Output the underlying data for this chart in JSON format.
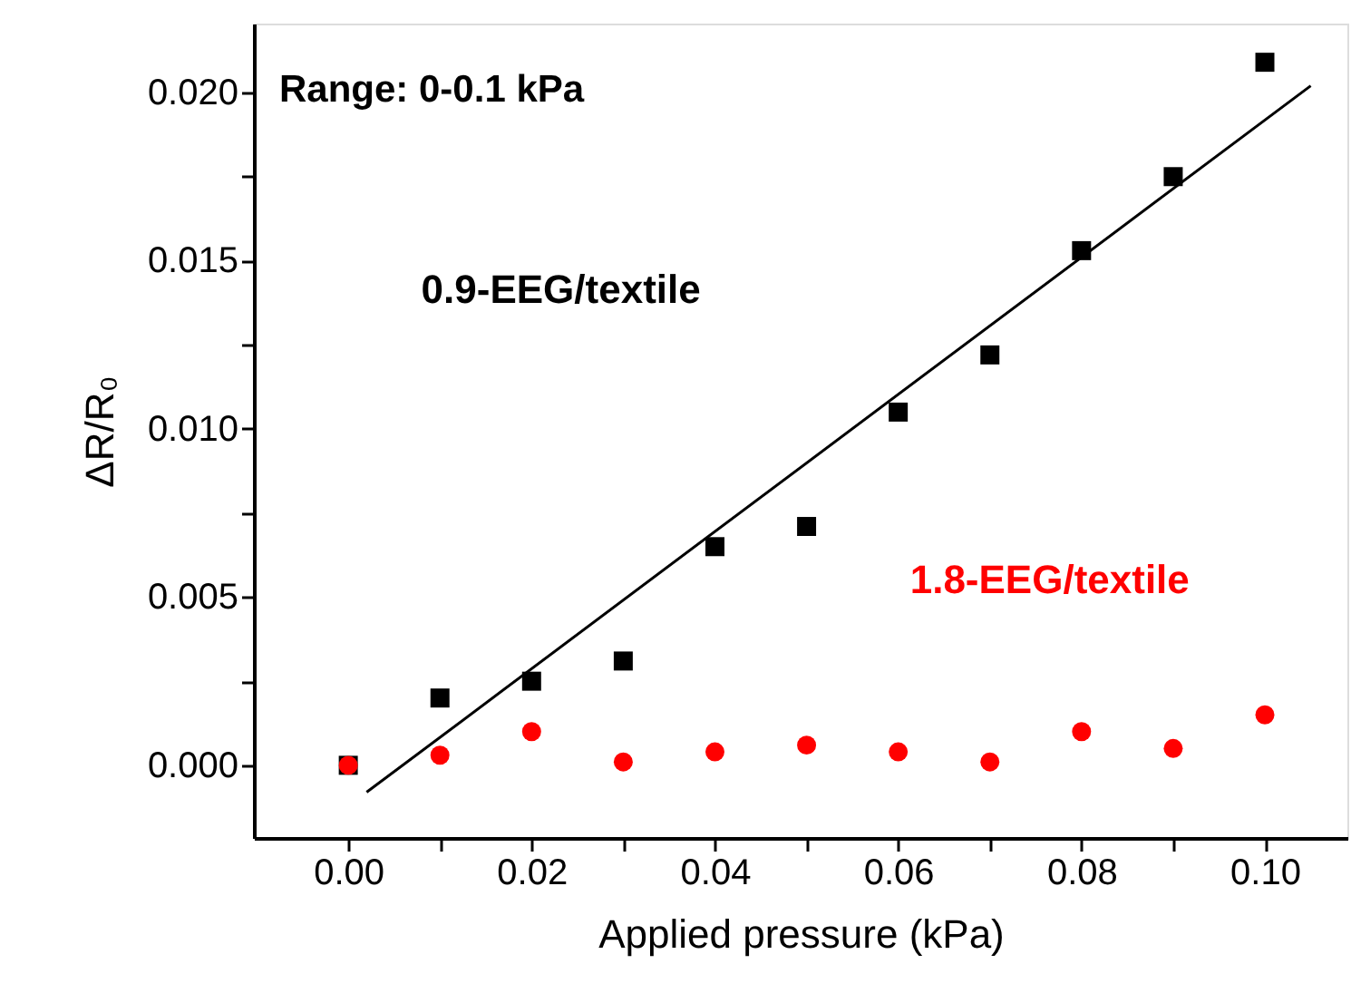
{
  "chart_data": {
    "type": "scatter",
    "xlabel": "Applied pressure (kPa)",
    "ylabel": "ΔR/R₀",
    "annotations": [
      "Range: 0-0.1 kPa"
    ],
    "x": [
      0,
      0.01,
      0.02,
      0.03,
      0.04,
      0.05,
      0.06,
      0.07,
      0.08,
      0.09,
      0.1
    ],
    "series": [
      {
        "name": "0.9-EEG/textile",
        "color": "#000000",
        "marker": "square",
        "values": [
          0,
          0.002,
          0.0025,
          0.0031,
          0.0065,
          0.0071,
          0.0105,
          0.0122,
          0.0153,
          0.0175,
          0.0209
        ]
      },
      {
        "name": "1.8-EEG/textile",
        "color": "#ff0000",
        "marker": "circle",
        "values": [
          0,
          0.0003,
          0.001,
          0.0001,
          0.0004,
          0.0006,
          0.0004,
          0.0001,
          0.001,
          0.0005,
          0.0015
        ]
      },
      {
        "type": "line",
        "color": "#000000",
        "line_style": "solid",
        "x": [
          0.002,
          0.105
        ],
        "values": [
          -0.0008,
          0.0202
        ]
      }
    ],
    "xlim": [
      -0.0103,
      0.109
    ],
    "ylim": [
      -0.00216,
      0.02205
    ],
    "xticks": [
      {
        "value": 0,
        "label": "0.00"
      },
      {
        "value": 0.01,
        "label": null
      },
      0.02,
      {
        "value": 0.03,
        "label": null
      },
      0.04,
      {
        "value": 0.05,
        "label": null
      },
      0.06,
      {
        "value": 0.07,
        "label": null
      },
      0.08,
      {
        "value": 0.09,
        "label": null
      },
      {
        "value": 0.1,
        "label": "0.10"
      }
    ],
    "yticks": [
      {
        "value": 0,
        "label": "0.000"
      },
      {
        "value": 0.0025,
        "label": null
      },
      0.005,
      {
        "value": 0.0075,
        "label": null
      },
      {
        "value": 0.01,
        "label": "0.010"
      },
      {
        "value": 0.0125,
        "label": null
      },
      0.015,
      {
        "value": 0.0175,
        "label": null
      },
      {
        "value": 0.02,
        "label": "0.020"
      }
    ],
    "grid": false
  }
}
